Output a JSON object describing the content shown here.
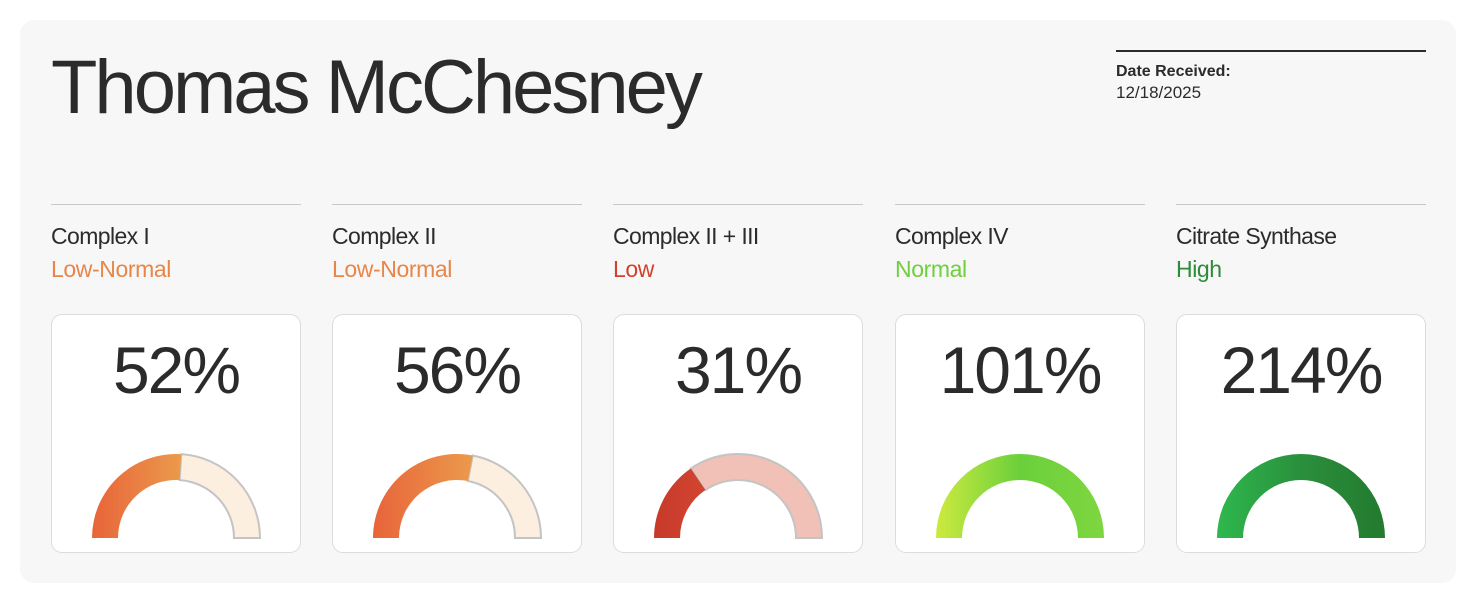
{
  "patient": {
    "name": "Thomas McChesney"
  },
  "report": {
    "date_label": "Date Received:",
    "date_value": "12/18/2025"
  },
  "assays": [
    {
      "name": "Complex I",
      "status": "Low-Normal",
      "percent_label": "52%",
      "gauge_fill": 0.52,
      "status_color": "#e8864a",
      "fill_colors": [
        "#e8643a",
        "#eb9a4c"
      ],
      "track_color": "#fcefdf"
    },
    {
      "name": "Complex II",
      "status": "Low-Normal",
      "percent_label": "56%",
      "gauge_fill": 0.56,
      "status_color": "#e8864a",
      "fill_colors": [
        "#e8643a",
        "#eb9a4c"
      ],
      "track_color": "#fcefdf"
    },
    {
      "name": "Complex II + III",
      "status": "Low",
      "percent_label": "31%",
      "gauge_fill": 0.31,
      "status_color": "#d2412e",
      "fill_colors": [
        "#c73a2b",
        "#d24530"
      ],
      "track_color": "#f1c0b7"
    },
    {
      "name": "Complex IV",
      "status": "Normal",
      "percent_label": "101%",
      "gauge_fill": 1.0,
      "status_color": "#6fcf3c",
      "fill_colors": [
        "#cdea3e",
        "#6bd03c",
        "#7ed63f"
      ],
      "track_color": "#e8f6dc"
    },
    {
      "name": "Citrate Synthase",
      "status": "High",
      "percent_label": "214%",
      "gauge_fill": 1.0,
      "status_color": "#2e8b38",
      "fill_colors": [
        "#2fb84e",
        "#2a8f3c",
        "#237a2f"
      ],
      "track_color": "#dff0e0"
    }
  ]
}
